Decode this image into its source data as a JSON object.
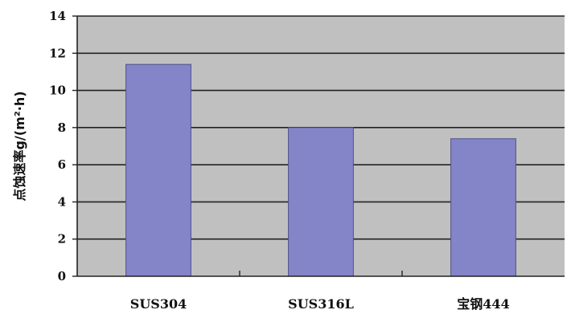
{
  "chart_data": {
    "type": "bar",
    "title": "",
    "xlabel": "",
    "ylabel": "点蚀速率g/(m²·h)",
    "ylim": [
      0,
      14
    ],
    "yticks": [
      "0",
      "2",
      "4",
      "6",
      "8",
      "10",
      "12",
      "14"
    ],
    "grid": true,
    "categories": [
      "SUS304",
      "SUS316L",
      "宝钢444"
    ],
    "values": [
      11.4,
      8.0,
      7.4
    ],
    "colors": {
      "plot_background": "#c0c0c0",
      "bar_fill": "#8484c8",
      "bar_stroke": "#505088",
      "grid": "#222222",
      "axis": "#222222"
    }
  }
}
